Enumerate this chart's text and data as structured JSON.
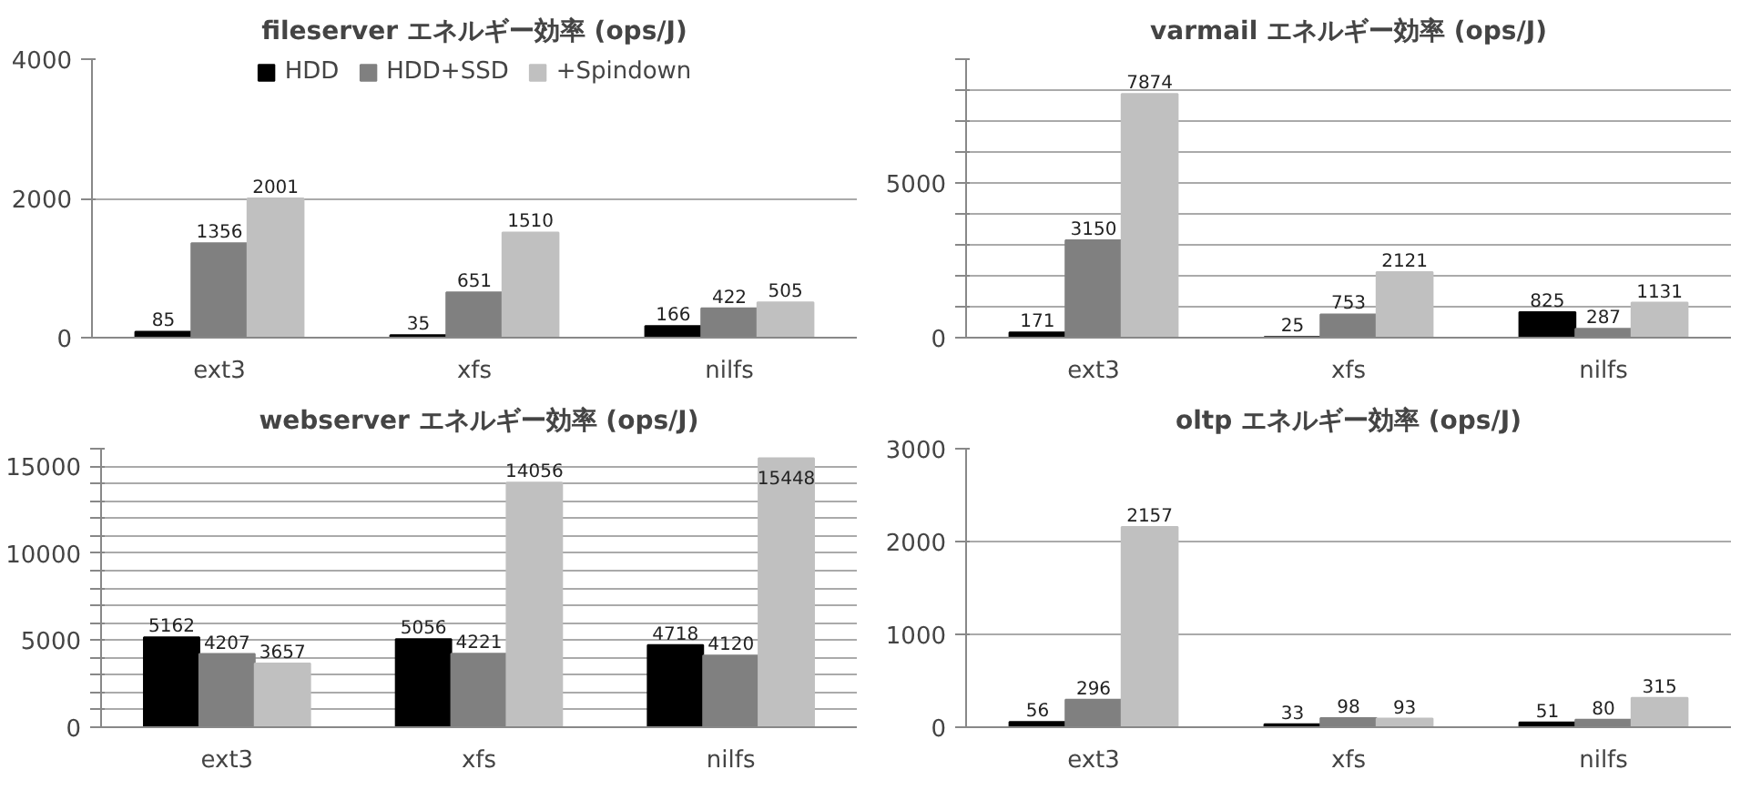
{
  "chart_data": [
    {
      "type": "bar",
      "title": "fileserver エネルギー効率 (ops/J)",
      "categories": [
        "ext3",
        "xfs",
        "nilfs"
      ],
      "series": [
        {
          "name": "HDD",
          "color": "#000000",
          "values": [
            85,
            35,
            166
          ]
        },
        {
          "name": "HDD+SSD",
          "color": "#808080",
          "values": [
            1356,
            651,
            422
          ]
        },
        {
          "name": "+Spindown",
          "color": "#c0c0c0",
          "values": [
            2001,
            1510,
            505
          ]
        }
      ],
      "ylim": [
        0,
        4000
      ],
      "yticks": [
        0,
        2000,
        4000
      ],
      "grid": "y",
      "legend": "top",
      "data_labels": true
    },
    {
      "type": "bar",
      "title": "varmail エネルギー効率 (ops/J)",
      "categories": [
        "ext3",
        "xfs",
        "nilfs"
      ],
      "series": [
        {
          "color": "#000000",
          "values": [
            171,
            25,
            825
          ]
        },
        {
          "color": "#808080",
          "values": [
            3150,
            753,
            287
          ]
        },
        {
          "color": "#c0c0c0",
          "values": [
            7874,
            2121,
            1131
          ]
        }
      ],
      "ylim": [
        0,
        9000
      ],
      "yticks": [
        0,
        {
          "value": 1000,
          "label": null
        },
        {
          "value": 2000,
          "label": null
        },
        {
          "value": 3000,
          "label": null
        },
        {
          "value": 4000,
          "label": null
        },
        5000,
        {
          "value": 6000,
          "label": null
        },
        {
          "value": 7000,
          "label": null
        },
        {
          "value": 8000,
          "label": null
        },
        {
          "value": 9000,
          "label": null
        }
      ],
      "grid": "y",
      "data_labels": true
    },
    {
      "type": "bar",
      "title": "webserver エネルギー効率 (ops/J)",
      "categories": [
        "ext3",
        "xfs",
        "nilfs"
      ],
      "series": [
        {
          "color": "#000000",
          "values": [
            5162,
            5056,
            4718
          ]
        },
        {
          "color": "#808080",
          "values": [
            4207,
            4221,
            4120
          ]
        },
        {
          "color": "#c0c0c0",
          "values": [
            3657,
            14056,
            15448
          ]
        }
      ],
      "ylim": [
        0,
        16000
      ],
      "yticks": [
        0,
        {
          "value": 1000,
          "label": null
        },
        {
          "value": 2000,
          "label": null
        },
        {
          "value": 3000,
          "label": null
        },
        {
          "value": 4000,
          "label": null
        },
        5000,
        {
          "value": 6000,
          "label": null
        },
        {
          "value": 7000,
          "label": null
        },
        {
          "value": 8000,
          "label": null
        },
        {
          "value": 9000,
          "label": null
        },
        10000,
        {
          "value": 11000,
          "label": null
        },
        {
          "value": 12000,
          "label": null
        },
        {
          "value": 13000,
          "label": null
        },
        {
          "value": 14000,
          "label": null
        },
        15000,
        {
          "value": 16000,
          "label": null
        }
      ],
      "grid": "y",
      "data_labels": true
    },
    {
      "type": "bar",
      "title": "oltp エネルギー効率 (ops/J)",
      "categories": [
        "ext3",
        "xfs",
        "nilfs"
      ],
      "series": [
        {
          "color": "#000000",
          "values": [
            56,
            33,
            51
          ]
        },
        {
          "color": "#808080",
          "values": [
            296,
            98,
            80
          ]
        },
        {
          "color": "#c0c0c0",
          "values": [
            2157,
            93,
            315
          ]
        }
      ],
      "ylim": [
        0,
        3000
      ],
      "yticks": [
        0,
        1000,
        2000,
        3000
      ],
      "grid": "y",
      "data_labels": true
    }
  ]
}
